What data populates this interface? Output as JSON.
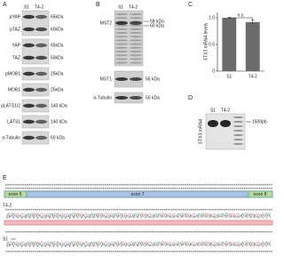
{
  "panel_a": {
    "letter": "A",
    "lanes": [
      "S1",
      "T4-2"
    ],
    "blots": [
      {
        "labels": [
          "pYAP",
          "pTAZ"
        ],
        "markers": [
          "65kDa",
          "60kDa"
        ]
      },
      {
        "labels": [
          "YAP",
          "TAZ"
        ],
        "markers": [
          "65kDa",
          "50kDa"
        ]
      },
      {
        "labels": [
          "pMOB1"
        ],
        "markers": [
          "25kDa"
        ]
      },
      {
        "labels": [
          "MOB1"
        ],
        "markers": [
          "25kDa"
        ]
      },
      {
        "labels": [
          "pLATS1/2"
        ],
        "markers": [
          "140 kDa"
        ]
      },
      {
        "labels": [
          "LATS1"
        ],
        "markers": [
          "140 kDa"
        ]
      },
      {
        "labels": [
          "α-Tubulin"
        ],
        "markers": [
          "50 kDa"
        ]
      }
    ]
  },
  "panel_b": {
    "letter": "B",
    "lanes": [
      "S1",
      "T4-2"
    ],
    "blots": [
      {
        "labels": [
          "MST2"
        ],
        "markers": [
          "58 kDa",
          "60 kDa"
        ]
      },
      {
        "labels": [
          "MST1"
        ],
        "markers": [
          "56 kDa"
        ]
      },
      {
        "labels": [
          "α-Tubulin"
        ],
        "markers": [
          "50 kDa"
        ]
      }
    ]
  },
  "chart_data": {
    "type": "bar",
    "letter": "C",
    "y_label": "STX3 mRNA levels",
    "annotation": "n.s.",
    "categories": [
      "S1",
      "T4-2"
    ],
    "values": [
      1,
      0.92
    ],
    "errors": [
      0.01,
      0.04
    ],
    "color": "#6b6b6b",
    "ylim": [
      0,
      1.1
    ],
    "yticks": [
      0,
      0.5,
      {
        "value": 1,
        "label": "1.0"
      }
    ]
  },
  "panel_d": {
    "letter": "D",
    "lanes": [
      "S1",
      "T4-2"
    ],
    "y_label": "STX3 mRNA",
    "marker": "1500pb"
  },
  "panel_e": {
    "letter": "E",
    "exons": [
      "exon 6",
      "exon 7",
      "exon 8"
    ],
    "samples": [
      "T4-2",
      "S1"
    ]
  }
}
